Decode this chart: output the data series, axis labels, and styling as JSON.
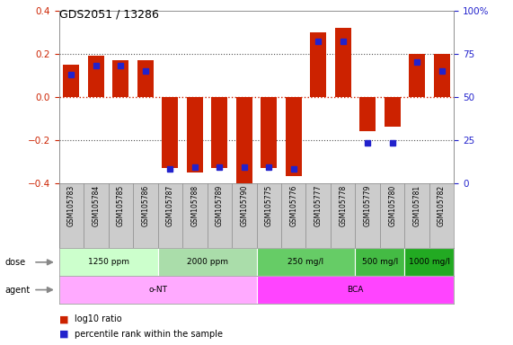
{
  "title": "GDS2051 / 13286",
  "samples": [
    "GSM105783",
    "GSM105784",
    "GSM105785",
    "GSM105786",
    "GSM105787",
    "GSM105788",
    "GSM105789",
    "GSM105790",
    "GSM105775",
    "GSM105776",
    "GSM105777",
    "GSM105778",
    "GSM105779",
    "GSM105780",
    "GSM105781",
    "GSM105782"
  ],
  "log10_ratio": [
    0.15,
    0.19,
    0.17,
    0.17,
    -0.33,
    -0.35,
    -0.33,
    -0.4,
    -0.33,
    -0.37,
    0.3,
    0.32,
    -0.16,
    -0.14,
    0.2,
    0.2
  ],
  "percentile": [
    63,
    68,
    68,
    65,
    8,
    9,
    9,
    9,
    9,
    8,
    82,
    82,
    23,
    23,
    70,
    65
  ],
  "bar_color": "#cc2200",
  "dot_color": "#2222cc",
  "background": "#ffffff",
  "ylim_left": [
    -0.4,
    0.4
  ],
  "ylim_right": [
    0,
    100
  ],
  "yticks_left": [
    -0.4,
    -0.2,
    0.0,
    0.2,
    0.4
  ],
  "yticks_right": [
    0,
    25,
    50,
    75,
    100
  ],
  "dose_groups": [
    {
      "label": "1250 ppm",
      "start": 0,
      "end": 4,
      "color": "#ccffcc"
    },
    {
      "label": "2000 ppm",
      "start": 4,
      "end": 8,
      "color": "#aaddaa"
    },
    {
      "label": "250 mg/l",
      "start": 8,
      "end": 12,
      "color": "#66cc66"
    },
    {
      "label": "500 mg/l",
      "start": 12,
      "end": 14,
      "color": "#44bb44"
    },
    {
      "label": "1000 mg/l",
      "start": 14,
      "end": 16,
      "color": "#22aa22"
    }
  ],
  "agent_groups": [
    {
      "label": "o-NT",
      "start": 0,
      "end": 8,
      "color": "#ff99ff"
    },
    {
      "label": "BCA",
      "start": 8,
      "end": 16,
      "color": "#ee44ee"
    }
  ],
  "legend_red_label": "log10 ratio",
  "legend_blue_label": "percentile rank within the sample",
  "dose_row_label": "dose",
  "agent_row_label": "agent",
  "hline_color": "#cc2200",
  "grid_color": "#555555",
  "sample_bg_color": "#cccccc",
  "sample_border_color": "#888888"
}
